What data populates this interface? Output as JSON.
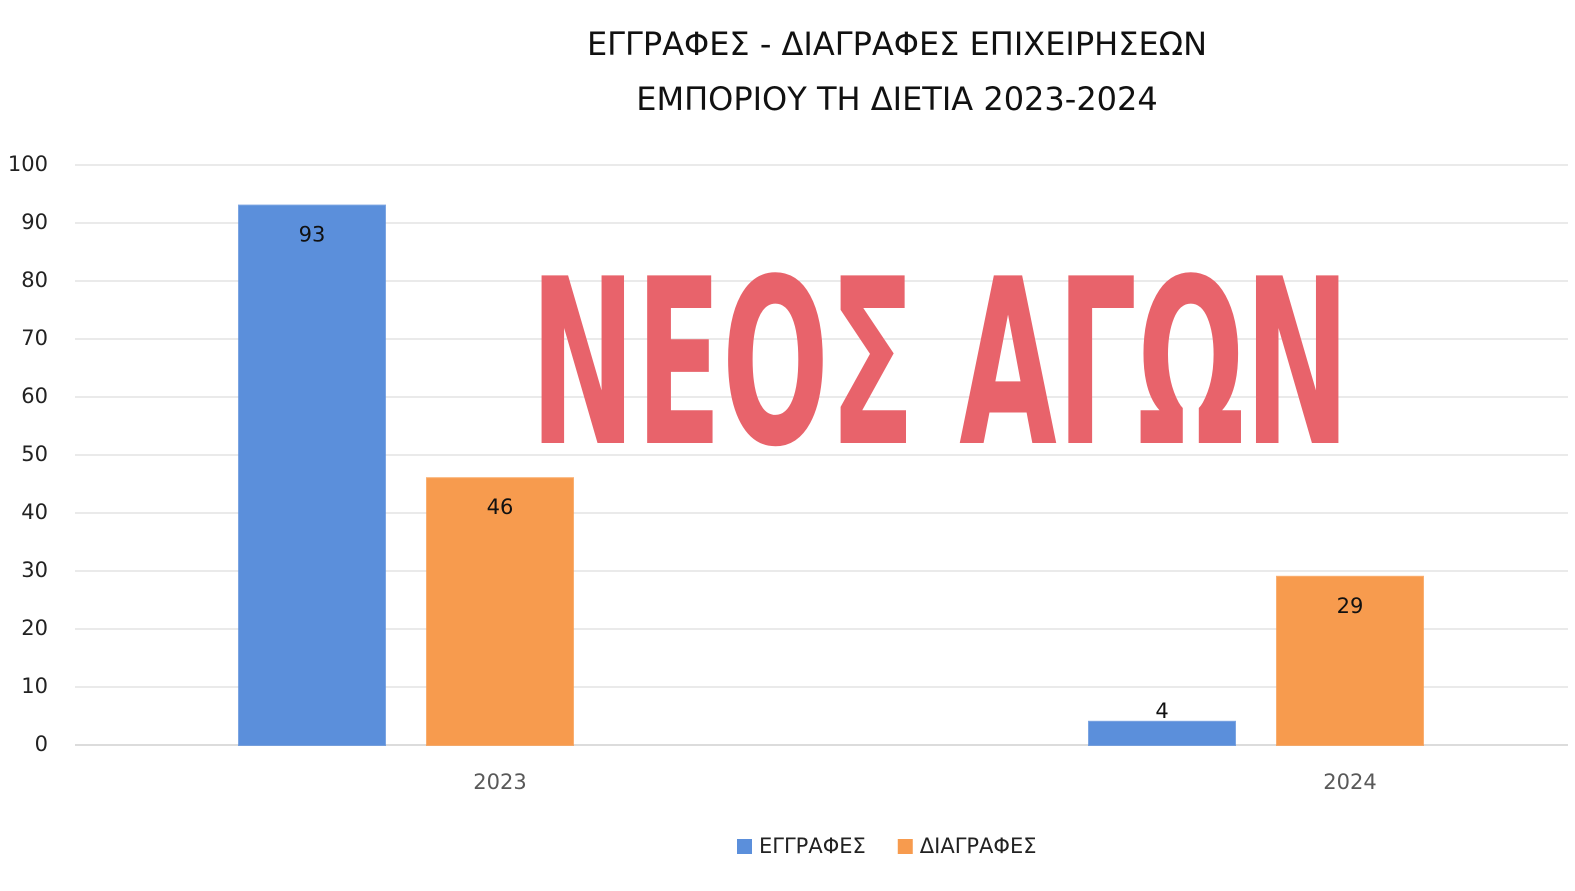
{
  "chart_data": {
    "type": "bar",
    "title": [
      "ΕΓΓΡΑΦΕΣ - ΔΙΑΓΡΑΦΕΣ ΕΠΙΧΕΙΡΗΣΕΩΝ",
      "ΕΜΠΟΡΙΟΥ ΤΗ ΔΙΕΤΙΑ 2023-2024"
    ],
    "categories": [
      "2023",
      "2024"
    ],
    "series": [
      {
        "name": "ΕΓΓΡΑΦΕΣ",
        "color": "#5b8fdb",
        "values": [
          93,
          4
        ]
      },
      {
        "name": "ΔΙΑΓΡΑΦΕΣ",
        "color": "#f79b4e",
        "values": [
          46,
          29
        ]
      }
    ],
    "ylim": [
      0,
      100
    ],
    "yticks": [
      0,
      10,
      20,
      30,
      40,
      50,
      60,
      70,
      80,
      90,
      100
    ],
    "grid": true,
    "legend": "bottom",
    "watermark": "ΝΕΟΣ ΑΓΩΝ"
  }
}
